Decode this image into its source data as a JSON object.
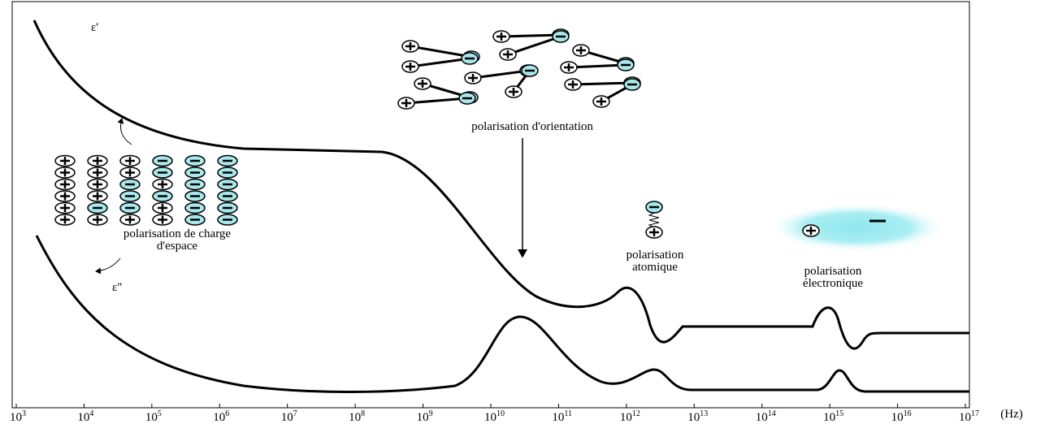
{
  "curves": {
    "real": "ε'",
    "imaginary": "ε\""
  },
  "labels": {
    "orientation": "polarisation d'orientation",
    "space_charge": [
      "polarisation de charge",
      "d'espace"
    ],
    "atomic": [
      "polarisation",
      "atomique"
    ],
    "electronic": [
      "polarisation",
      "électronique"
    ]
  },
  "axis": {
    "unit": "(Hz)",
    "ticks": [
      {
        "base": "10",
        "exp": "3"
      },
      {
        "base": "10",
        "exp": "4"
      },
      {
        "base": "10",
        "exp": "5"
      },
      {
        "base": "10",
        "exp": "6"
      },
      {
        "base": "10",
        "exp": "7"
      },
      {
        "base": "10",
        "exp": "8"
      },
      {
        "base": "10",
        "exp": "9"
      },
      {
        "base": "10",
        "exp": "10"
      },
      {
        "base": "10",
        "exp": "11"
      },
      {
        "base": "10",
        "exp": "12"
      },
      {
        "base": "10",
        "exp": "13"
      },
      {
        "base": "10",
        "exp": "14"
      },
      {
        "base": "10",
        "exp": "15"
      },
      {
        "base": "10",
        "exp": "16"
      },
      {
        "base": "10",
        "exp": "17"
      }
    ]
  }
}
